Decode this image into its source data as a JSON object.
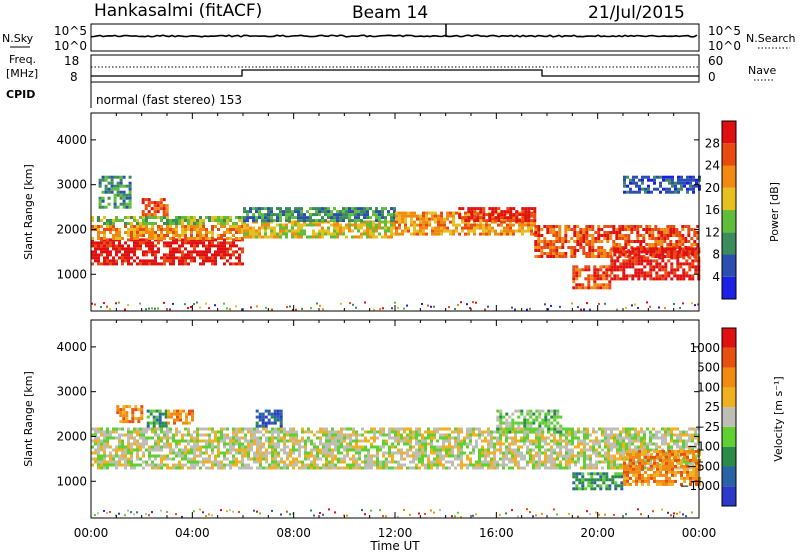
{
  "header": {
    "station": "Hankasalmi (fitACF)",
    "beam": "Beam 14",
    "date": "21/Jul/2015"
  },
  "noise_panel": {
    "left_label": "N.Sky",
    "right_label": "N.Search",
    "left_ticks": [
      "10^5",
      "10^0"
    ],
    "right_ticks": [
      "10^5",
      "10^0"
    ]
  },
  "freq_panel": {
    "left_label_1": "Freq.",
    "left_label_2": "[MHz]",
    "right_label": "Nave",
    "left_ticks": [
      "18",
      "8"
    ],
    "right_ticks": [
      "60",
      "0"
    ],
    "cpid_label": "CPID",
    "cpid_text": "normal (fast stereo) 153"
  },
  "chart_data": [
    {
      "type": "heatmap",
      "title": "",
      "xlabel": "Time UT",
      "ylabel": "Slant Range [km]",
      "x_ticks": [
        "00:00",
        "04:00",
        "08:00",
        "12:00",
        "16:00",
        "20:00",
        "00:00"
      ],
      "x_range_hours": [
        0,
        24
      ],
      "y_ticks": [
        1000,
        2000,
        3000,
        4000
      ],
      "ylim": [
        180,
        4600
      ],
      "colorbar": {
        "label": "Power [dB]",
        "ticks": [
          "4",
          "8",
          "12",
          "16",
          "20",
          "24",
          "28"
        ],
        "colors": [
          "#1c20e6",
          "#2a4fb0",
          "#3b8c5a",
          "#5ebe3a",
          "#e6c020",
          "#f08a10",
          "#e84a10",
          "#e01010"
        ]
      },
      "regions": [
        {
          "t0": 0.0,
          "t1": 6.0,
          "r0": 1200,
          "r1": 1800,
          "level": 7
        },
        {
          "t0": 0.0,
          "t1": 6.0,
          "r0": 1800,
          "r1": 2100,
          "level": 5
        },
        {
          "t0": 0.0,
          "t1": 6.0,
          "r0": 2100,
          "r1": 2300,
          "level": 3
        },
        {
          "t0": 0.3,
          "t1": 1.5,
          "r0": 2500,
          "r1": 3200,
          "level": 2
        },
        {
          "t0": 2.0,
          "t1": 3.0,
          "r0": 2300,
          "r1": 2700,
          "level": 6
        },
        {
          "t0": 6.0,
          "t1": 12.0,
          "r0": 1800,
          "r1": 2200,
          "level": 4
        },
        {
          "t0": 6.0,
          "t1": 12.0,
          "r0": 2200,
          "r1": 2500,
          "level": 2
        },
        {
          "t0": 12.0,
          "t1": 17.5,
          "r0": 1900,
          "r1": 2400,
          "level": 5
        },
        {
          "t0": 14.5,
          "t1": 17.5,
          "r0": 2200,
          "r1": 2500,
          "level": 7
        },
        {
          "t0": 17.5,
          "t1": 24.0,
          "r0": 1400,
          "r1": 2100,
          "level": 6
        },
        {
          "t0": 20.5,
          "t1": 24.0,
          "r0": 900,
          "r1": 1600,
          "level": 7
        },
        {
          "t0": 19.0,
          "t1": 20.5,
          "r0": 700,
          "r1": 1200,
          "level": 6
        },
        {
          "t0": 21.0,
          "t1": 24.0,
          "r0": 2800,
          "r1": 3200,
          "level": 1
        }
      ]
    },
    {
      "type": "heatmap",
      "title": "",
      "xlabel": "Time UT",
      "ylabel": "Slant Range [km]",
      "x_ticks": [
        "00:00",
        "04:00",
        "08:00",
        "12:00",
        "16:00",
        "20:00",
        "00:00"
      ],
      "x_range_hours": [
        0,
        24
      ],
      "y_ticks": [
        1000,
        2000,
        3000,
        4000
      ],
      "ylim": [
        180,
        4600
      ],
      "colorbar": {
        "label": "Velocity [m s⁻¹]",
        "ticks": [
          "1000",
          "500",
          "100",
          "25",
          "−25",
          "−100",
          "−500",
          "−1000"
        ],
        "colors": [
          "#2b38c8",
          "#2a62a6",
          "#2a8a4a",
          "#5ed030",
          "#bebeb6",
          "#f0b020",
          "#f08a10",
          "#e85010",
          "#e01010"
        ]
      },
      "regions": [
        {
          "t0": 0.0,
          "t1": 24.0,
          "r0": 1300,
          "r1": 2200,
          "level": 4
        },
        {
          "t0": 2.2,
          "t1": 3.0,
          "r0": 2200,
          "r1": 2600,
          "level": 2
        },
        {
          "t0": 3.0,
          "t1": 4.0,
          "r0": 2300,
          "r1": 2600,
          "level": 6
        },
        {
          "t0": 6.5,
          "t1": 7.5,
          "r0": 2200,
          "r1": 2600,
          "level": 1
        },
        {
          "t0": 16.0,
          "t1": 18.5,
          "r0": 2100,
          "r1": 2600,
          "level": 3
        },
        {
          "t0": 19.0,
          "t1": 21.0,
          "r0": 800,
          "r1": 1200,
          "level": 2
        },
        {
          "t0": 21.0,
          "t1": 24.0,
          "r0": 900,
          "r1": 1700,
          "level": 6
        },
        {
          "t0": 1.0,
          "t1": 2.0,
          "r0": 2300,
          "r1": 2700,
          "level": 6
        }
      ]
    }
  ]
}
